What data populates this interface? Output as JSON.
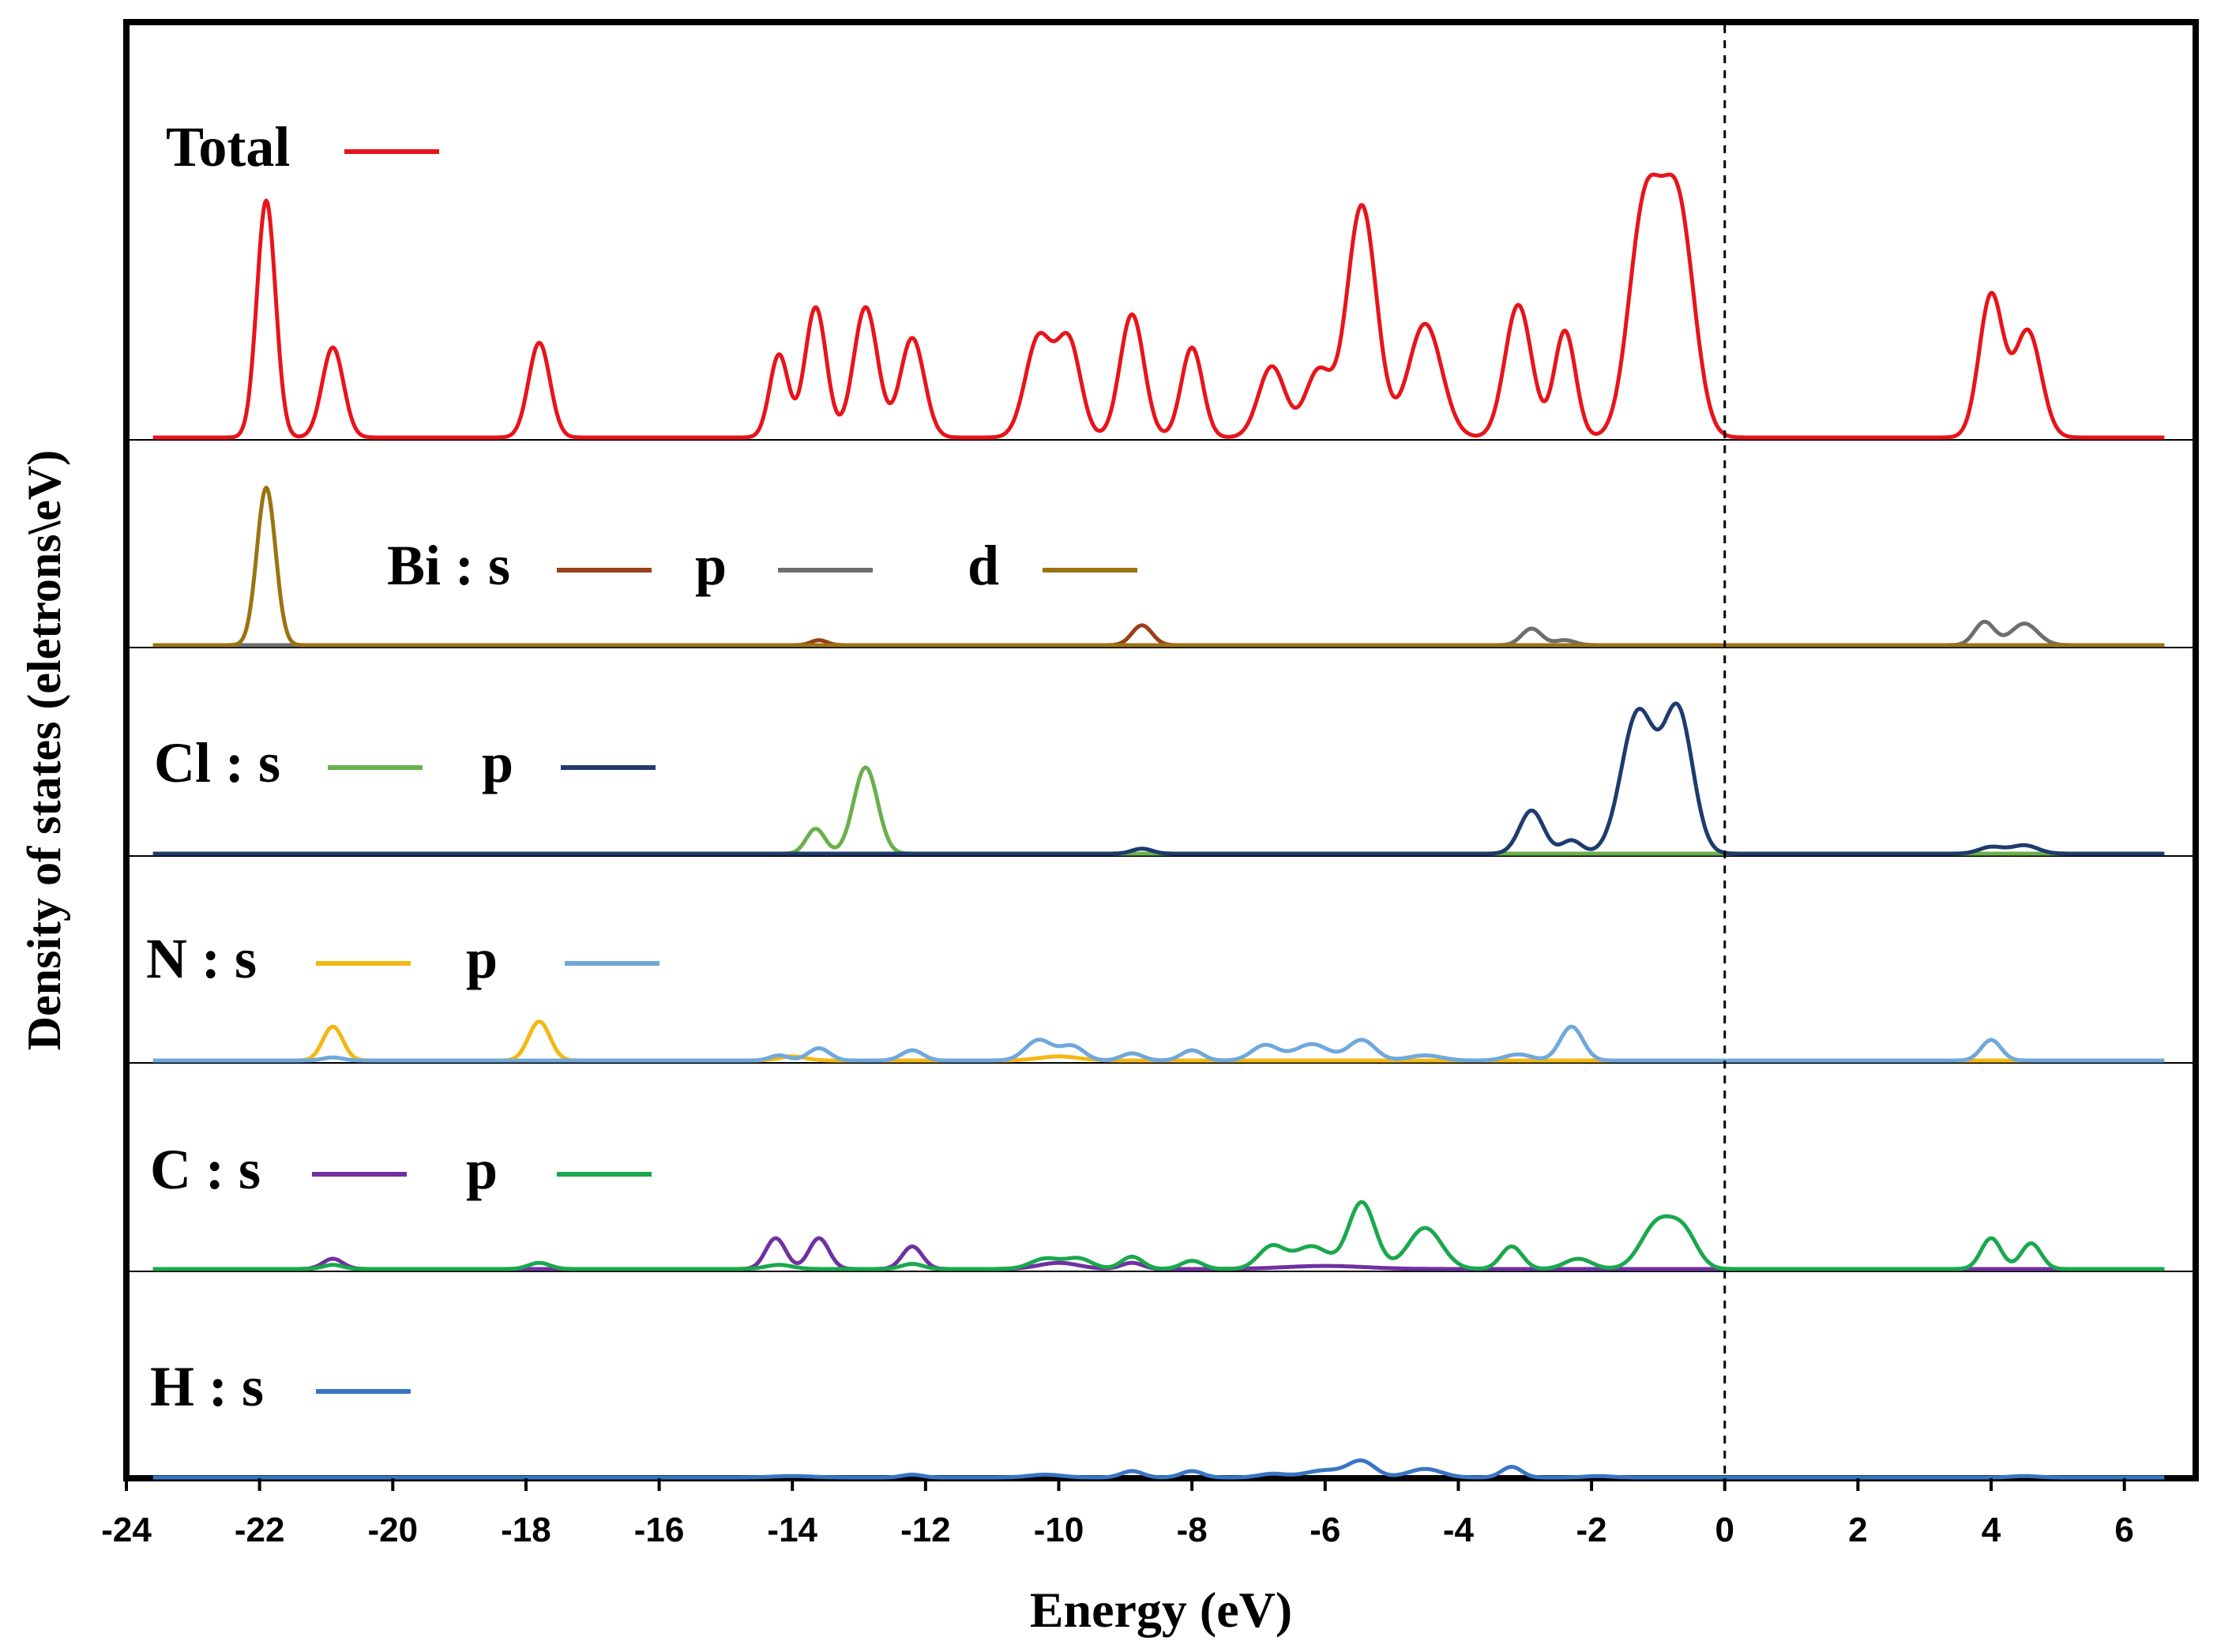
{
  "chart_data": {
    "type": "line",
    "xlabel": "Energy (eV)",
    "ylabel": "Density of states (eletrons\\eV)",
    "xlim": [
      -24,
      7
    ],
    "xticks": [
      -24,
      -22,
      -20,
      -18,
      -16,
      -14,
      -12,
      -10,
      -8,
      -6,
      -4,
      -2,
      0,
      2,
      4,
      6
    ],
    "fermi_level": 0,
    "panels": [
      {
        "name": "total",
        "legend": [
          {
            "label": "Total",
            "color": "#e8141b"
          }
        ],
        "series": [
          {
            "name": "Total",
            "color": "#e8141b",
            "peaks": [
              [
                -21.9,
                1.0,
                0.14
              ],
              [
                -20.9,
                0.38,
                0.16
              ],
              [
                -17.8,
                0.4,
                0.16
              ],
              [
                -14.2,
                0.35,
                0.14
              ],
              [
                -13.65,
                0.55,
                0.16
              ],
              [
                -12.9,
                0.55,
                0.18
              ],
              [
                -12.2,
                0.42,
                0.18
              ],
              [
                -10.3,
                0.42,
                0.2
              ],
              [
                -9.85,
                0.4,
                0.18
              ],
              [
                -8.9,
                0.52,
                0.18
              ],
              [
                -8.0,
                0.38,
                0.16
              ],
              [
                -6.8,
                0.3,
                0.2
              ],
              [
                -6.1,
                0.28,
                0.2
              ],
              [
                -5.45,
                0.98,
                0.22
              ],
              [
                -4.5,
                0.48,
                0.25
              ],
              [
                -3.1,
                0.56,
                0.2
              ],
              [
                -2.4,
                0.45,
                0.16
              ],
              [
                -1.2,
                0.95,
                0.24
              ],
              [
                -0.7,
                0.95,
                0.24
              ],
              [
                4.0,
                0.6,
                0.18
              ],
              [
                4.55,
                0.45,
                0.2
              ]
            ]
          }
        ]
      },
      {
        "name": "Bi",
        "legend": [
          {
            "label": "Bi : s",
            "color": "#9a3f1a"
          },
          {
            "label": "p",
            "color": "#6e6e6e"
          },
          {
            "label": "d",
            "color": "#9a7410"
          }
        ],
        "series": [
          {
            "name": "Bi-s",
            "color": "#9a3f1a",
            "peaks": [
              [
                -13.6,
                0.03,
                0.12
              ],
              [
                -8.75,
                0.12,
                0.15
              ]
            ]
          },
          {
            "name": "Bi-p",
            "color": "#6e6e6e",
            "peaks": [
              [
                -2.9,
                0.1,
                0.15
              ],
              [
                -2.4,
                0.03,
                0.15
              ],
              [
                3.9,
                0.14,
                0.15
              ],
              [
                4.5,
                0.13,
                0.2
              ]
            ]
          },
          {
            "name": "Bi-d",
            "color": "#9a7410",
            "peaks": [
              [
                -21.9,
                0.95,
                0.14
              ]
            ]
          }
        ]
      },
      {
        "name": "Cl",
        "legend": [
          {
            "label": "Cl : s",
            "color": "#6ab04c"
          },
          {
            "label": "p",
            "color": "#1f3b6e"
          }
        ],
        "series": [
          {
            "name": "Cl-s",
            "color": "#6ab04c",
            "peaks": [
              [
                -13.65,
                0.15,
                0.14
              ],
              [
                -12.9,
                0.52,
                0.18
              ]
            ]
          },
          {
            "name": "Cl-p",
            "color": "#1f3b6e",
            "peaks": [
              [
                -8.75,
                0.03,
                0.15
              ],
              [
                -2.9,
                0.26,
                0.18
              ],
              [
                -2.3,
                0.08,
                0.15
              ],
              [
                -1.3,
                0.85,
                0.25
              ],
              [
                -0.7,
                0.85,
                0.22
              ],
              [
                4.0,
                0.04,
                0.18
              ],
              [
                4.5,
                0.05,
                0.2
              ]
            ]
          }
        ]
      },
      {
        "name": "N",
        "legend": [
          {
            "label": "N : s",
            "color": "#f2b813"
          },
          {
            "label": "p",
            "color": "#6fa8dc"
          }
        ],
        "series": [
          {
            "name": "N-s",
            "color": "#f2b813",
            "peaks": [
              [
                -20.9,
                0.33,
                0.15
              ],
              [
                -17.8,
                0.38,
                0.16
              ],
              [
                -14.0,
                0.04,
                0.2
              ],
              [
                -10.0,
                0.04,
                0.3
              ]
            ]
          },
          {
            "name": "N-p",
            "color": "#6fa8dc",
            "peaks": [
              [
                -20.9,
                0.03,
                0.15
              ],
              [
                -14.2,
                0.05,
                0.14
              ],
              [
                -13.6,
                0.12,
                0.16
              ],
              [
                -12.2,
                0.1,
                0.16
              ],
              [
                -10.3,
                0.2,
                0.2
              ],
              [
                -9.8,
                0.14,
                0.18
              ],
              [
                -8.9,
                0.07,
                0.16
              ],
              [
                -8.0,
                0.1,
                0.16
              ],
              [
                -6.9,
                0.15,
                0.2
              ],
              [
                -6.2,
                0.16,
                0.25
              ],
              [
                -5.45,
                0.2,
                0.2
              ],
              [
                -4.5,
                0.05,
                0.25
              ],
              [
                -3.1,
                0.06,
                0.2
              ],
              [
                -2.3,
                0.33,
                0.17
              ],
              [
                4.0,
                0.2,
                0.15
              ]
            ]
          }
        ]
      },
      {
        "name": "C",
        "legend": [
          {
            "label": "C : s",
            "color": "#7030a0"
          },
          {
            "label": "p",
            "color": "#1aa84d"
          }
        ],
        "series": [
          {
            "name": "C-s",
            "color": "#7030a0",
            "peaks": [
              [
                -20.9,
                0.1,
                0.15
              ],
              [
                -14.25,
                0.3,
                0.15
              ],
              [
                -13.6,
                0.3,
                0.15
              ],
              [
                -12.2,
                0.22,
                0.15
              ],
              [
                -10.0,
                0.06,
                0.3
              ],
              [
                -8.9,
                0.06,
                0.16
              ],
              [
                -6.0,
                0.03,
                0.6
              ]
            ]
          },
          {
            "name": "C-p",
            "color": "#1aa84d",
            "peaks": [
              [
                -20.9,
                0.04,
                0.15
              ],
              [
                -17.8,
                0.06,
                0.16
              ],
              [
                -14.2,
                0.04,
                0.2
              ],
              [
                -12.2,
                0.05,
                0.16
              ],
              [
                -10.2,
                0.1,
                0.22
              ],
              [
                -9.7,
                0.1,
                0.2
              ],
              [
                -8.9,
                0.12,
                0.16
              ],
              [
                -8.0,
                0.08,
                0.16
              ],
              [
                -6.8,
                0.22,
                0.2
              ],
              [
                -6.2,
                0.22,
                0.25
              ],
              [
                -5.45,
                0.65,
                0.2
              ],
              [
                -4.5,
                0.4,
                0.25
              ],
              [
                -3.2,
                0.22,
                0.16
              ],
              [
                -2.2,
                0.1,
                0.2
              ],
              [
                -1.0,
                0.45,
                0.25
              ],
              [
                -0.6,
                0.3,
                0.2
              ],
              [
                4.0,
                0.3,
                0.15
              ],
              [
                4.6,
                0.25,
                0.15
              ]
            ]
          }
        ]
      },
      {
        "name": "H",
        "legend": [
          {
            "label": "H : s",
            "color": "#3a75c4"
          }
        ],
        "series": [
          {
            "name": "H-s",
            "color": "#3a75c4",
            "peaks": [
              [
                -14.0,
                0.02,
                0.3
              ],
              [
                -12.2,
                0.04,
                0.15
              ],
              [
                -10.2,
                0.04,
                0.25
              ],
              [
                -8.9,
                0.09,
                0.16
              ],
              [
                -8.0,
                0.09,
                0.16
              ],
              [
                -6.8,
                0.05,
                0.2
              ],
              [
                -6.0,
                0.1,
                0.3
              ],
              [
                -5.45,
                0.22,
                0.2
              ],
              [
                -4.5,
                0.12,
                0.25
              ],
              [
                -3.2,
                0.15,
                0.15
              ],
              [
                -1.9,
                0.02,
                0.2
              ],
              [
                4.5,
                0.02,
                0.2
              ]
            ]
          }
        ]
      }
    ]
  }
}
